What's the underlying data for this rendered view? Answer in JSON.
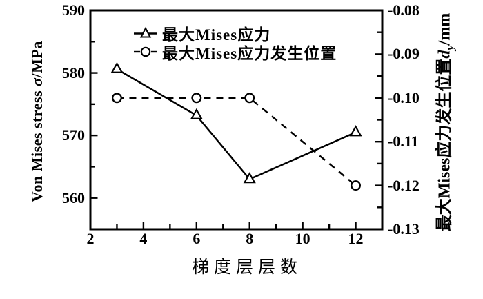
{
  "chart_data": {
    "type": "line",
    "title": "",
    "background_color": "#ffffff",
    "foreground_color": "#000000",
    "grid": false,
    "legend_position": "top-center-inside",
    "x": {
      "label": "梯度层层数",
      "min": 2,
      "max": 13,
      "major_ticks": [
        2,
        4,
        6,
        8,
        10,
        12
      ],
      "tick_labels": [
        "2",
        "4",
        "6",
        "8",
        "10",
        "12"
      ],
      "minor_ticks": [
        3,
        5,
        7,
        9,
        11,
        13
      ]
    },
    "y_left": {
      "label": "Von Mises stress σ/MPa",
      "label_parts": {
        "prefix": "Von Mises stress ",
        "symbol": "σ",
        "unit": "/MPa"
      },
      "min": 555,
      "max": 590,
      "major_ticks": [
        590,
        580,
        570,
        560
      ],
      "tick_labels": [
        "590",
        "580",
        "570",
        "560"
      ],
      "minor_ticks": [
        585,
        575,
        565,
        555
      ]
    },
    "y_right": {
      "label": "最大Mises应力发生位置dy/mm",
      "label_parts": {
        "prefix": "最大Mises应力发生位置",
        "d": "d",
        "sub": "y",
        "unit": "/mm"
      },
      "min": -0.13,
      "max": -0.08,
      "major_ticks": [
        -0.08,
        -0.09,
        -0.1,
        -0.11,
        -0.12,
        -0.13
      ],
      "tick_labels": [
        "-0.08",
        "-0.09",
        "-0.10",
        "-0.11",
        "-0.12",
        "-0.13"
      ],
      "minor_ticks": [
        -0.085,
        -0.095,
        -0.105,
        -0.115,
        -0.125
      ]
    },
    "series": [
      {
        "name": "最大Mises应力",
        "axis": "left",
        "marker": "triangle",
        "line_style": "solid",
        "color": "#000000",
        "x": [
          3,
          6,
          8,
          12
        ],
        "y": [
          580.6,
          573.2,
          563.0,
          570.5
        ]
      },
      {
        "name": "最大Mises应力发生位置",
        "axis": "right",
        "marker": "circle",
        "line_style": "dashed",
        "color": "#000000",
        "x": [
          3,
          6,
          8,
          12
        ],
        "y": [
          -0.1,
          -0.1,
          -0.1,
          -0.12
        ]
      }
    ]
  }
}
